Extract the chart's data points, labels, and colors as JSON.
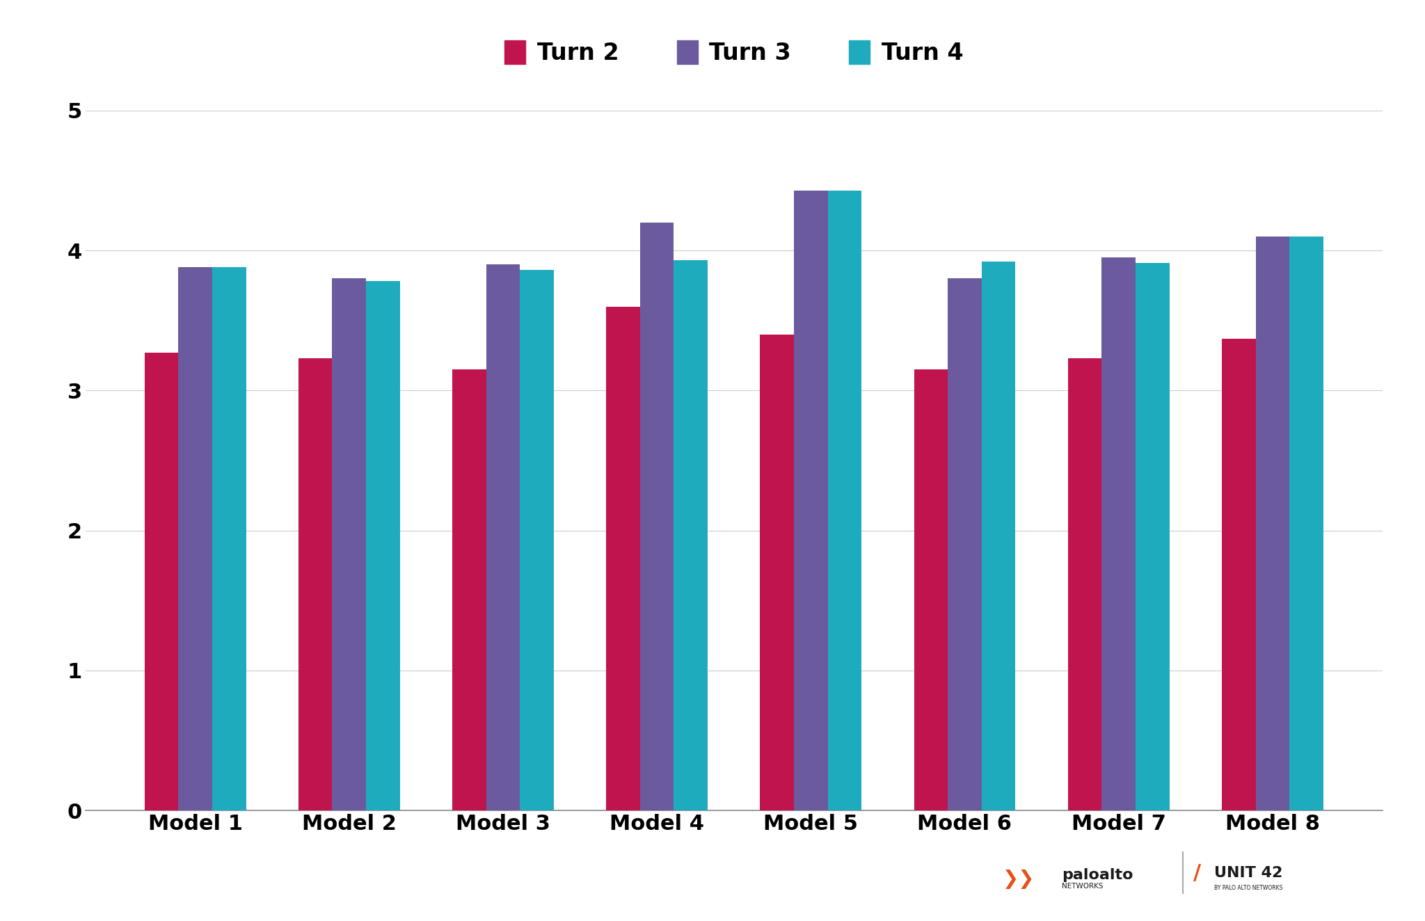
{
  "models": [
    "Model 1",
    "Model 2",
    "Model 3",
    "Model 4",
    "Model 5",
    "Model 6",
    "Model 7",
    "Model 8"
  ],
  "turn2": [
    3.27,
    3.23,
    3.15,
    3.6,
    3.4,
    3.15,
    3.23,
    3.37
  ],
  "turn3": [
    3.88,
    3.8,
    3.9,
    4.2,
    4.43,
    3.8,
    3.95,
    4.1
  ],
  "turn4": [
    3.88,
    3.78,
    3.86,
    3.93,
    4.43,
    3.92,
    3.91,
    4.1
  ],
  "turn2_color": "#C0144E",
  "turn3_color": "#6B5B9E",
  "turn4_color": "#1EABBE",
  "background_color": "#FFFFFF",
  "ylim": [
    0,
    5
  ],
  "yticks": [
    0,
    1,
    2,
    3,
    4,
    5
  ],
  "legend_labels": [
    "Turn 2",
    "Turn 3",
    "Turn 4"
  ],
  "legend_fontsize": 24,
  "tick_fontsize": 22,
  "bar_width": 0.22,
  "grid_color": "#CCCCCC",
  "figsize": [
    20.48,
    13.24
  ],
  "dpi": 100
}
